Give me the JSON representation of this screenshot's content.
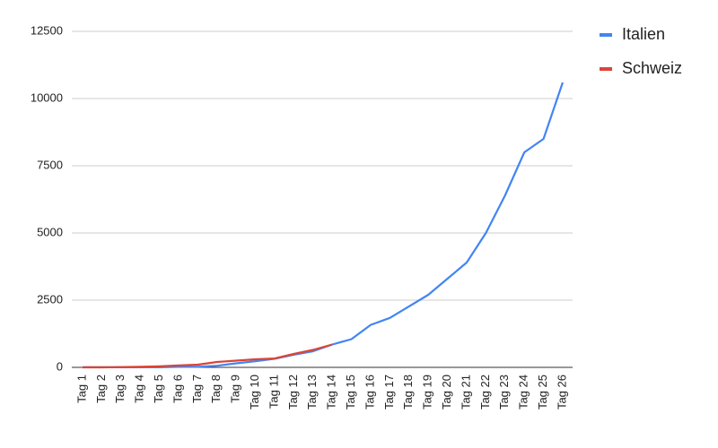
{
  "chart_data": {
    "type": "line",
    "categories": [
      "Tag 1",
      "Tag 2",
      "Tag 3",
      "Tag 4",
      "Tag 5",
      "Tag 6",
      "Tag 7",
      "Tag 8",
      "Tag 9",
      "Tag 10",
      "Tag 11",
      "Tag 12",
      "Tag 13",
      "Tag 14",
      "Tag 15",
      "Tag 16",
      "Tag 17",
      "Tag 18",
      "Tag 19",
      "Tag 20",
      "Tag 21",
      "Tag 22",
      "Tag 23",
      "Tag 24",
      "Tag 25",
      "Tag 26"
    ],
    "series": [
      {
        "name": "Italien",
        "color": "#4285f4",
        "values": [
          3,
          3,
          3,
          3,
          3,
          20,
          20,
          60,
          150,
          230,
          320,
          470,
          600,
          850,
          1050,
          1580,
          1840,
          2270,
          2700,
          3300,
          3900,
          5000,
          6400,
          8000,
          8500,
          10600
        ]
      },
      {
        "name": "Schweiz",
        "color": "#db4437",
        "values": [
          0,
          0,
          10,
          20,
          40,
          70,
          100,
          200,
          250,
          300,
          330,
          500,
          650,
          850,
          null,
          null,
          null,
          null,
          null,
          null,
          null,
          null,
          null,
          null,
          null,
          null
        ]
      }
    ],
    "ylim": [
      0,
      12500
    ],
    "yticks": [
      0,
      2500,
      5000,
      7500,
      10000,
      12500
    ],
    "grid": true,
    "legend": "right"
  }
}
